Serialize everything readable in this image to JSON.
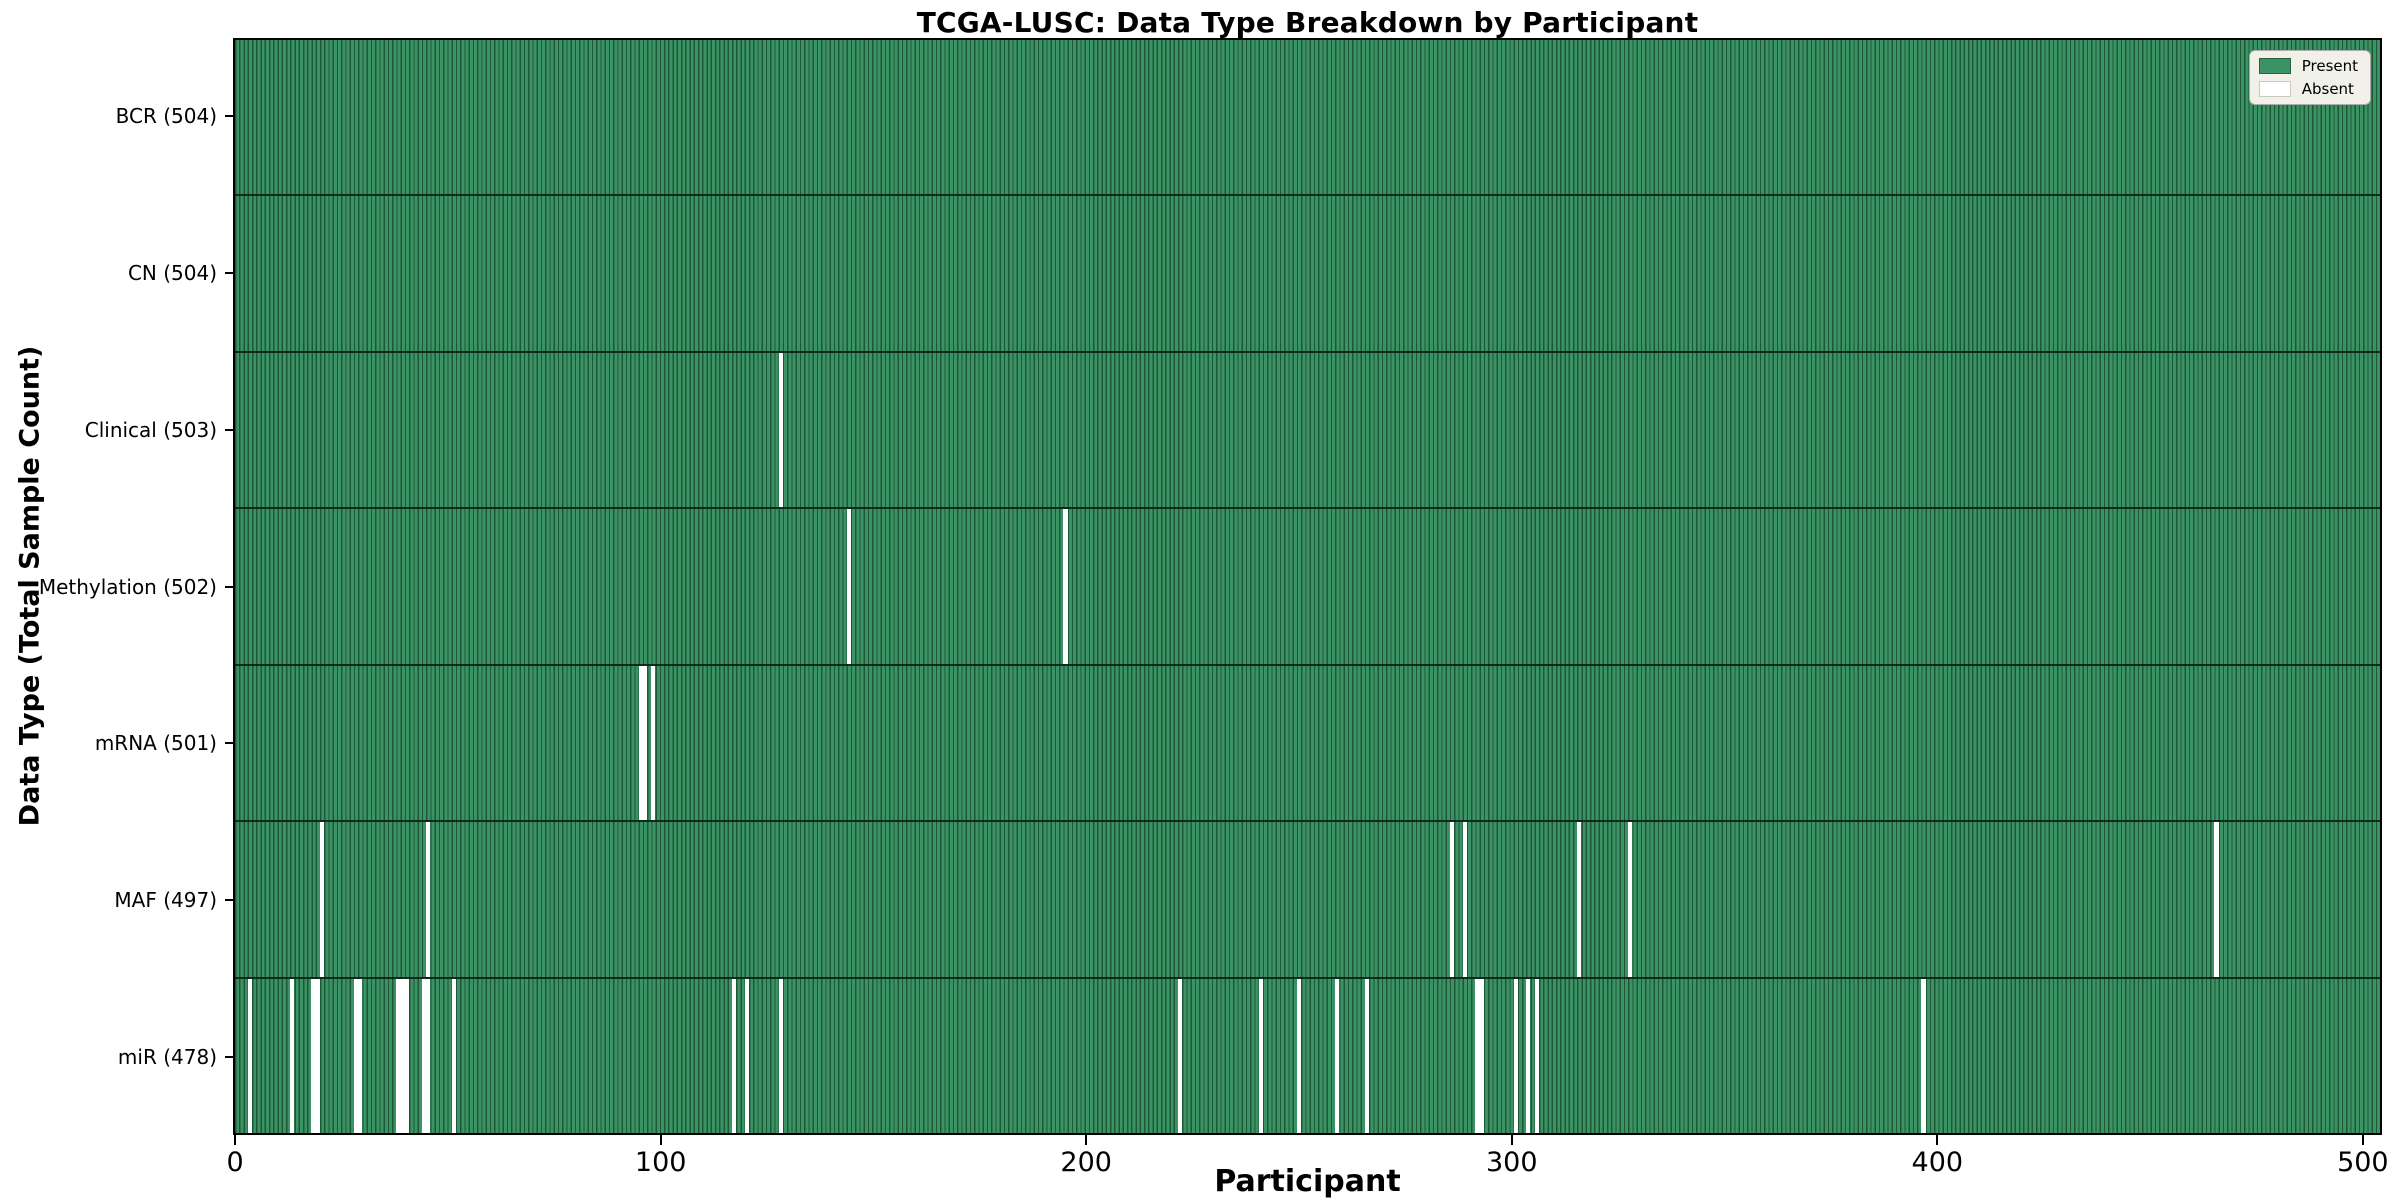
{
  "title": "TCGA-LUSC: Data Type Breakdown by Participant",
  "axes": {
    "xlabel": "Participant",
    "ylabel": "Data Type (Total Sample Count)"
  },
  "legend": {
    "present": "Present",
    "absent": "Absent"
  },
  "colors": {
    "present_fill": "#3b9365",
    "present_solid": "#2f8c59",
    "bar_edge": "#1c5837",
    "absent": "#ffffff",
    "row_divider": "#0d2417",
    "legend_bg": "#f1f1ea",
    "legend_border": "#adadad"
  },
  "chart_data": {
    "type": "heatmap",
    "title": "TCGA-LUSC: Data Type Breakdown by Participant",
    "xlabel": "Participant",
    "ylabel": "Data Type (Total Sample Count)",
    "legend_entries": [
      "Present",
      "Absent"
    ],
    "legend_position": "upper right",
    "grid": false,
    "x_ticks": [
      0,
      100,
      200,
      300,
      400,
      500
    ],
    "x_range": [
      -0.5,
      504.5
    ],
    "n_participants": 504,
    "rows": [
      {
        "label": "BCR (504)",
        "data_type": "BCR",
        "present_count": 504,
        "absent_participants": []
      },
      {
        "label": "CN (504)",
        "data_type": "CN",
        "present_count": 504,
        "absent_participants": []
      },
      {
        "label": "Clinical (503)",
        "data_type": "Clinical",
        "present_count": 503,
        "absent_participants": [
          128
        ]
      },
      {
        "label": "Methylation (502)",
        "data_type": "Methylation",
        "present_count": 502,
        "absent_participants": [
          144,
          195
        ]
      },
      {
        "label": "mRNA (501)",
        "data_type": "mRNA",
        "present_count": 501,
        "absent_participants": [
          95,
          96,
          98
        ]
      },
      {
        "label": "MAF (497)",
        "data_type": "MAF",
        "present_count": 497,
        "absent_participants": [
          20,
          45,
          286,
          289,
          316,
          328,
          466
        ]
      },
      {
        "label": "miR (478)",
        "data_type": "miR",
        "present_count": 478,
        "absent_participants": [
          3,
          13,
          18,
          19,
          28,
          29,
          38,
          39,
          40,
          44,
          45,
          51,
          117,
          120,
          128,
          222,
          241,
          250,
          259,
          266,
          292,
          293,
          301,
          304,
          306,
          397
        ]
      }
    ]
  }
}
